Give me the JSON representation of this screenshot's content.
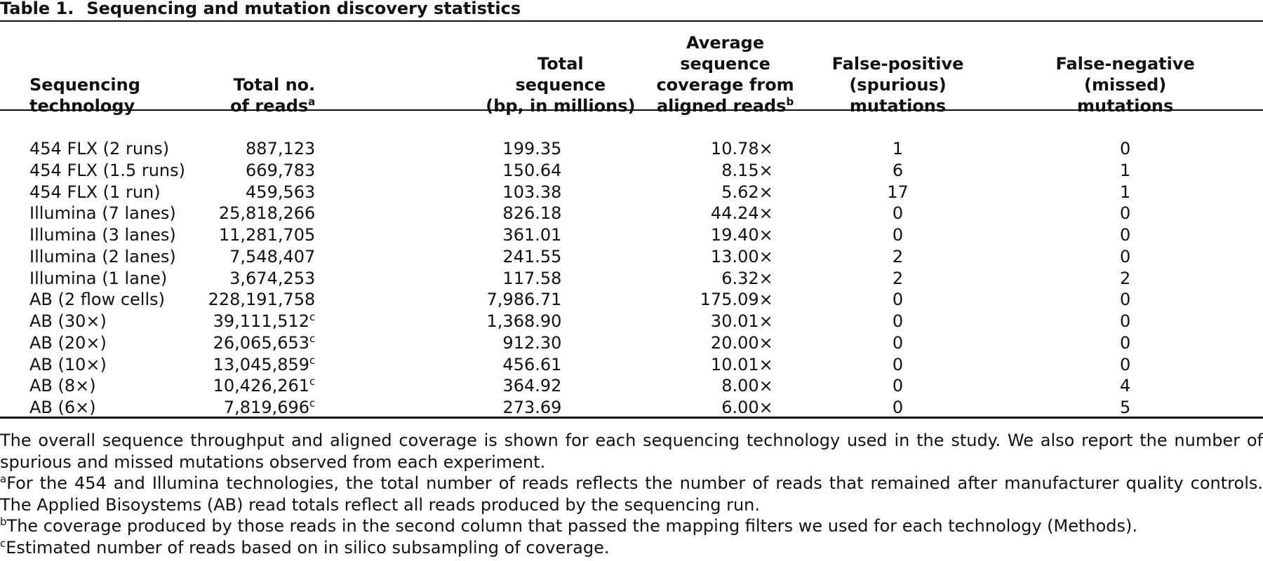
{
  "table": {
    "label": "Table 1.",
    "title": "Sequencing and mutation discovery statistics",
    "headers": {
      "technology": [
        "Sequencing",
        "technology"
      ],
      "reads": [
        "Total no.",
        "of reads"
      ],
      "reads_sup": "a",
      "sequence": [
        "Total",
        "sequence",
        "(bp, in millions)"
      ],
      "coverage": [
        "Average sequence",
        "coverage from",
        "aligned reads"
      ],
      "coverage_sup": "b",
      "false_positive": [
        "False-positive",
        "(spurious)",
        "mutations"
      ],
      "false_negative": [
        "False-negative",
        "(missed)",
        "mutations"
      ]
    },
    "rows": [
      {
        "technology": "454 FLX (2 runs)",
        "reads": "887,123",
        "reads_sup": "",
        "sequence": "199.35",
        "coverage": "10.78×",
        "false_positive": "1",
        "false_negative": "0"
      },
      {
        "technology": "454 FLX (1.5 runs)",
        "reads": "669,783",
        "reads_sup": "",
        "sequence": "150.64",
        "coverage": "8.15×",
        "false_positive": "6",
        "false_negative": "1"
      },
      {
        "technology": "454 FLX (1 run)",
        "reads": "459,563",
        "reads_sup": "",
        "sequence": "103.38",
        "coverage": "5.62×",
        "false_positive": "17",
        "false_negative": "1"
      },
      {
        "technology": "Illumina (7 lanes)",
        "reads": "25,818,266",
        "reads_sup": "",
        "sequence": "826.18",
        "coverage": "44.24×",
        "false_positive": "0",
        "false_negative": "0"
      },
      {
        "technology": "Illumina (3 lanes)",
        "reads": "11,281,705",
        "reads_sup": "",
        "sequence": "361.01",
        "coverage": "19.40×",
        "false_positive": "0",
        "false_negative": "0"
      },
      {
        "technology": "Illumina (2 lanes)",
        "reads": "7,548,407",
        "reads_sup": "",
        "sequence": "241.55",
        "coverage": "13.00×",
        "false_positive": "2",
        "false_negative": "0"
      },
      {
        "technology": "Illumina (1 lane)",
        "reads": "3,674,253",
        "reads_sup": "",
        "sequence": "117.58",
        "coverage": "6.32×",
        "false_positive": "2",
        "false_negative": "2"
      },
      {
        "technology": "AB (2 flow cells)",
        "reads": "228,191,758",
        "reads_sup": "",
        "sequence": "7,986.71",
        "coverage": "175.09×",
        "false_positive": "0",
        "false_negative": "0"
      },
      {
        "technology": "AB (30×)",
        "reads": "39,111,512",
        "reads_sup": "c",
        "sequence": "1,368.90",
        "coverage": "30.01×",
        "false_positive": "0",
        "false_negative": "0"
      },
      {
        "technology": "AB (20×)",
        "reads": "26,065,653",
        "reads_sup": "c",
        "sequence": "912.30",
        "coverage": "20.00×",
        "false_positive": "0",
        "false_negative": "0"
      },
      {
        "technology": "AB (10×)",
        "reads": "13,045,859",
        "reads_sup": "c",
        "sequence": "456.61",
        "coverage": "10.01×",
        "false_positive": "0",
        "false_negative": "0"
      },
      {
        "technology": "AB (8×)",
        "reads": "10,426,261",
        "reads_sup": "c",
        "sequence": "364.92",
        "coverage": "8.00×",
        "false_positive": "0",
        "false_negative": "4"
      },
      {
        "technology": "AB (6×)",
        "reads": "7,819,696",
        "reads_sup": "c",
        "sequence": "273.69",
        "coverage": "6.00×",
        "false_positive": "0",
        "false_negative": "5"
      }
    ]
  },
  "notes": {
    "description": "The overall sequence throughput and aligned coverage is shown for each sequencing technology used in the study. We also report the number of spurious and missed mutations observed from each experiment.",
    "footnotes": [
      {
        "mark": "a",
        "text": "For the 454 and Illumina technologies, the total number of reads reflects the number of reads that remained after manufacturer quality controls. The Applied Bisoystems (AB) read totals reflect all reads produced by the sequencing run."
      },
      {
        "mark": "b",
        "text": "The coverage produced by those reads in the second column that passed the mapping filters we used for each technology (Methods)."
      },
      {
        "mark": "c",
        "text": "Estimated number of reads based on in silico subsampling of coverage."
      }
    ]
  }
}
